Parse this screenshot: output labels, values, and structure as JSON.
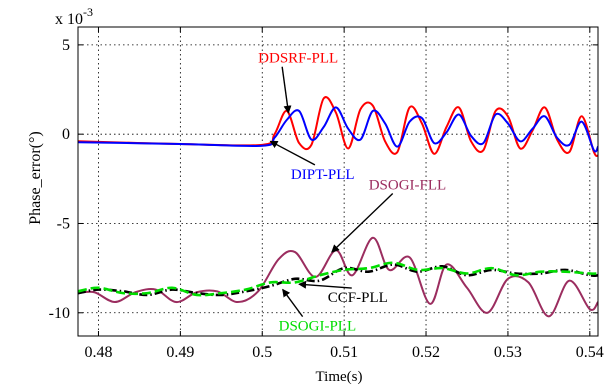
{
  "chart_data": {
    "type": "line",
    "title": "",
    "xlabel": "Time(s)",
    "ylabel": "Phase_error(°)",
    "scale_label": "x 10",
    "scale_exponent": "-3",
    "xlim": [
      0.4775,
      0.541
    ],
    "ylim": [
      -11.3,
      6.0
    ],
    "xticks": [
      0.48,
      0.49,
      0.5,
      0.51,
      0.52,
      0.53,
      0.54
    ],
    "xtick_labels": [
      "0.48",
      "0.49",
      "0.5",
      "0.51",
      "0.52",
      "0.53",
      "0.54"
    ],
    "yticks": [
      5,
      0,
      -5,
      -10
    ],
    "ytick_labels": [
      "5",
      "0",
      "-5",
      "-10"
    ],
    "grid": true,
    "series": [
      {
        "name": "DDSRF-PLL",
        "color": "#ff0000",
        "style": "solid",
        "x": [
          0.4775,
          0.49,
          0.5,
          0.5015,
          0.503,
          0.5045,
          0.506,
          0.5075,
          0.509,
          0.5105,
          0.512,
          0.5135,
          0.515,
          0.5165,
          0.518,
          0.5195,
          0.521,
          0.5225,
          0.524,
          0.5255,
          0.527,
          0.5285,
          0.53,
          0.5315,
          0.533,
          0.5345,
          0.536,
          0.5375,
          0.539,
          0.5405,
          0.541
        ],
        "y": [
          -0.4,
          -0.55,
          -0.6,
          0.0,
          1.3,
          -0.5,
          -0.6,
          2.0,
          1.2,
          -0.8,
          1.4,
          1.6,
          -0.4,
          -1.0,
          1.5,
          0.6,
          -1.1,
          0.4,
          1.5,
          -0.4,
          -0.9,
          1.3,
          1.0,
          -0.8,
          0.2,
          1.5,
          -0.3,
          -1.0,
          1.0,
          -1.0,
          -1.2
        ]
      },
      {
        "name": "DIPT-PLL",
        "color": "#0000ff",
        "style": "solid",
        "x": [
          0.4775,
          0.49,
          0.5,
          0.5015,
          0.503,
          0.5045,
          0.506,
          0.5075,
          0.509,
          0.5105,
          0.512,
          0.5135,
          0.515,
          0.5165,
          0.518,
          0.5195,
          0.521,
          0.5225,
          0.524,
          0.5255,
          0.527,
          0.5285,
          0.53,
          0.5315,
          0.533,
          0.5345,
          0.536,
          0.5375,
          0.539,
          0.5405,
          0.541
        ],
        "y": [
          -0.45,
          -0.55,
          -0.65,
          -0.2,
          0.8,
          1.3,
          -0.3,
          0.4,
          1.5,
          0.3,
          -0.3,
          1.3,
          0.6,
          -0.7,
          0.7,
          0.9,
          -0.5,
          0.1,
          1.1,
          -0.1,
          -0.5,
          1.1,
          0.6,
          -0.4,
          0.3,
          1.0,
          -0.2,
          -0.6,
          0.7,
          -0.9,
          -0.7
        ]
      },
      {
        "name": "DSOGI-FLL",
        "color": "#9b2d5f",
        "style": "solid",
        "x": [
          0.4775,
          0.4795,
          0.482,
          0.4845,
          0.487,
          0.4895,
          0.492,
          0.4945,
          0.497,
          0.4995,
          0.502,
          0.504,
          0.5065,
          0.509,
          0.511,
          0.5135,
          0.5155,
          0.518,
          0.5205,
          0.5225,
          0.525,
          0.5275,
          0.53,
          0.5325,
          0.535,
          0.5375,
          0.54,
          0.541
        ],
        "y": [
          -8.9,
          -8.85,
          -9.4,
          -8.85,
          -8.7,
          -9.4,
          -8.85,
          -8.8,
          -9.4,
          -8.8,
          -7.0,
          -6.6,
          -8.0,
          -6.5,
          -7.9,
          -5.8,
          -7.6,
          -6.9,
          -9.5,
          -7.3,
          -8.6,
          -10.0,
          -8.1,
          -8.3,
          -10.2,
          -8.2,
          -9.8,
          -9.4
        ]
      },
      {
        "name": "CCF-PLL",
        "color": "#000000",
        "style": "dashdot",
        "x": [
          0.4775,
          0.48,
          0.483,
          0.486,
          0.489,
          0.492,
          0.495,
          0.498,
          0.501,
          0.504,
          0.507,
          0.51,
          0.513,
          0.516,
          0.519,
          0.522,
          0.525,
          0.528,
          0.531,
          0.534,
          0.537,
          0.54,
          0.541
        ],
        "y": [
          -8.9,
          -8.7,
          -8.8,
          -9.0,
          -8.7,
          -8.9,
          -9.0,
          -8.8,
          -8.5,
          -8.1,
          -8.2,
          -7.5,
          -7.7,
          -7.3,
          -7.7,
          -7.4,
          -7.9,
          -7.6,
          -7.8,
          -7.8,
          -7.6,
          -7.9,
          -7.9
        ]
      },
      {
        "name": "DSOGI-PLL",
        "color": "#00dd00",
        "style": "dashed",
        "x": [
          0.4775,
          0.48,
          0.483,
          0.486,
          0.489,
          0.492,
          0.495,
          0.498,
          0.501,
          0.504,
          0.507,
          0.51,
          0.513,
          0.516,
          0.519,
          0.522,
          0.525,
          0.528,
          0.531,
          0.534,
          0.537,
          0.54,
          0.541
        ],
        "y": [
          -8.8,
          -8.6,
          -8.9,
          -8.9,
          -8.6,
          -9.0,
          -8.9,
          -8.7,
          -8.3,
          -8.3,
          -7.9,
          -7.6,
          -7.5,
          -7.2,
          -7.6,
          -7.5,
          -7.8,
          -7.5,
          -7.9,
          -7.7,
          -7.7,
          -7.8,
          -7.8
        ]
      }
    ],
    "annotations": [
      {
        "text": "DDSRF-PLL",
        "color": "#ff0000",
        "x": 0.4995,
        "y": 4.0,
        "arrow_to": [
          0.5032,
          1.2
        ]
      },
      {
        "text": "DIPT-PLL",
        "color": "#0000ff",
        "x": 0.5035,
        "y": -2.5,
        "arrow_to": [
          0.501,
          -0.4
        ]
      },
      {
        "text": "DSOGI-FLL",
        "color": "#9b2d5f",
        "x": 0.513,
        "y": -3.1,
        "arrow_to": [
          0.5085,
          -6.6
        ]
      },
      {
        "text": "CCF-PLL",
        "color": "#000000",
        "x": 0.508,
        "y": -9.4,
        "arrow_to": [
          0.5045,
          -8.4
        ]
      },
      {
        "text": "DSOGI-PLL",
        "color": "#00dd00",
        "x": 0.502,
        "y": -11.0,
        "arrow_to": [
          0.5025,
          -8.7
        ]
      }
    ]
  }
}
